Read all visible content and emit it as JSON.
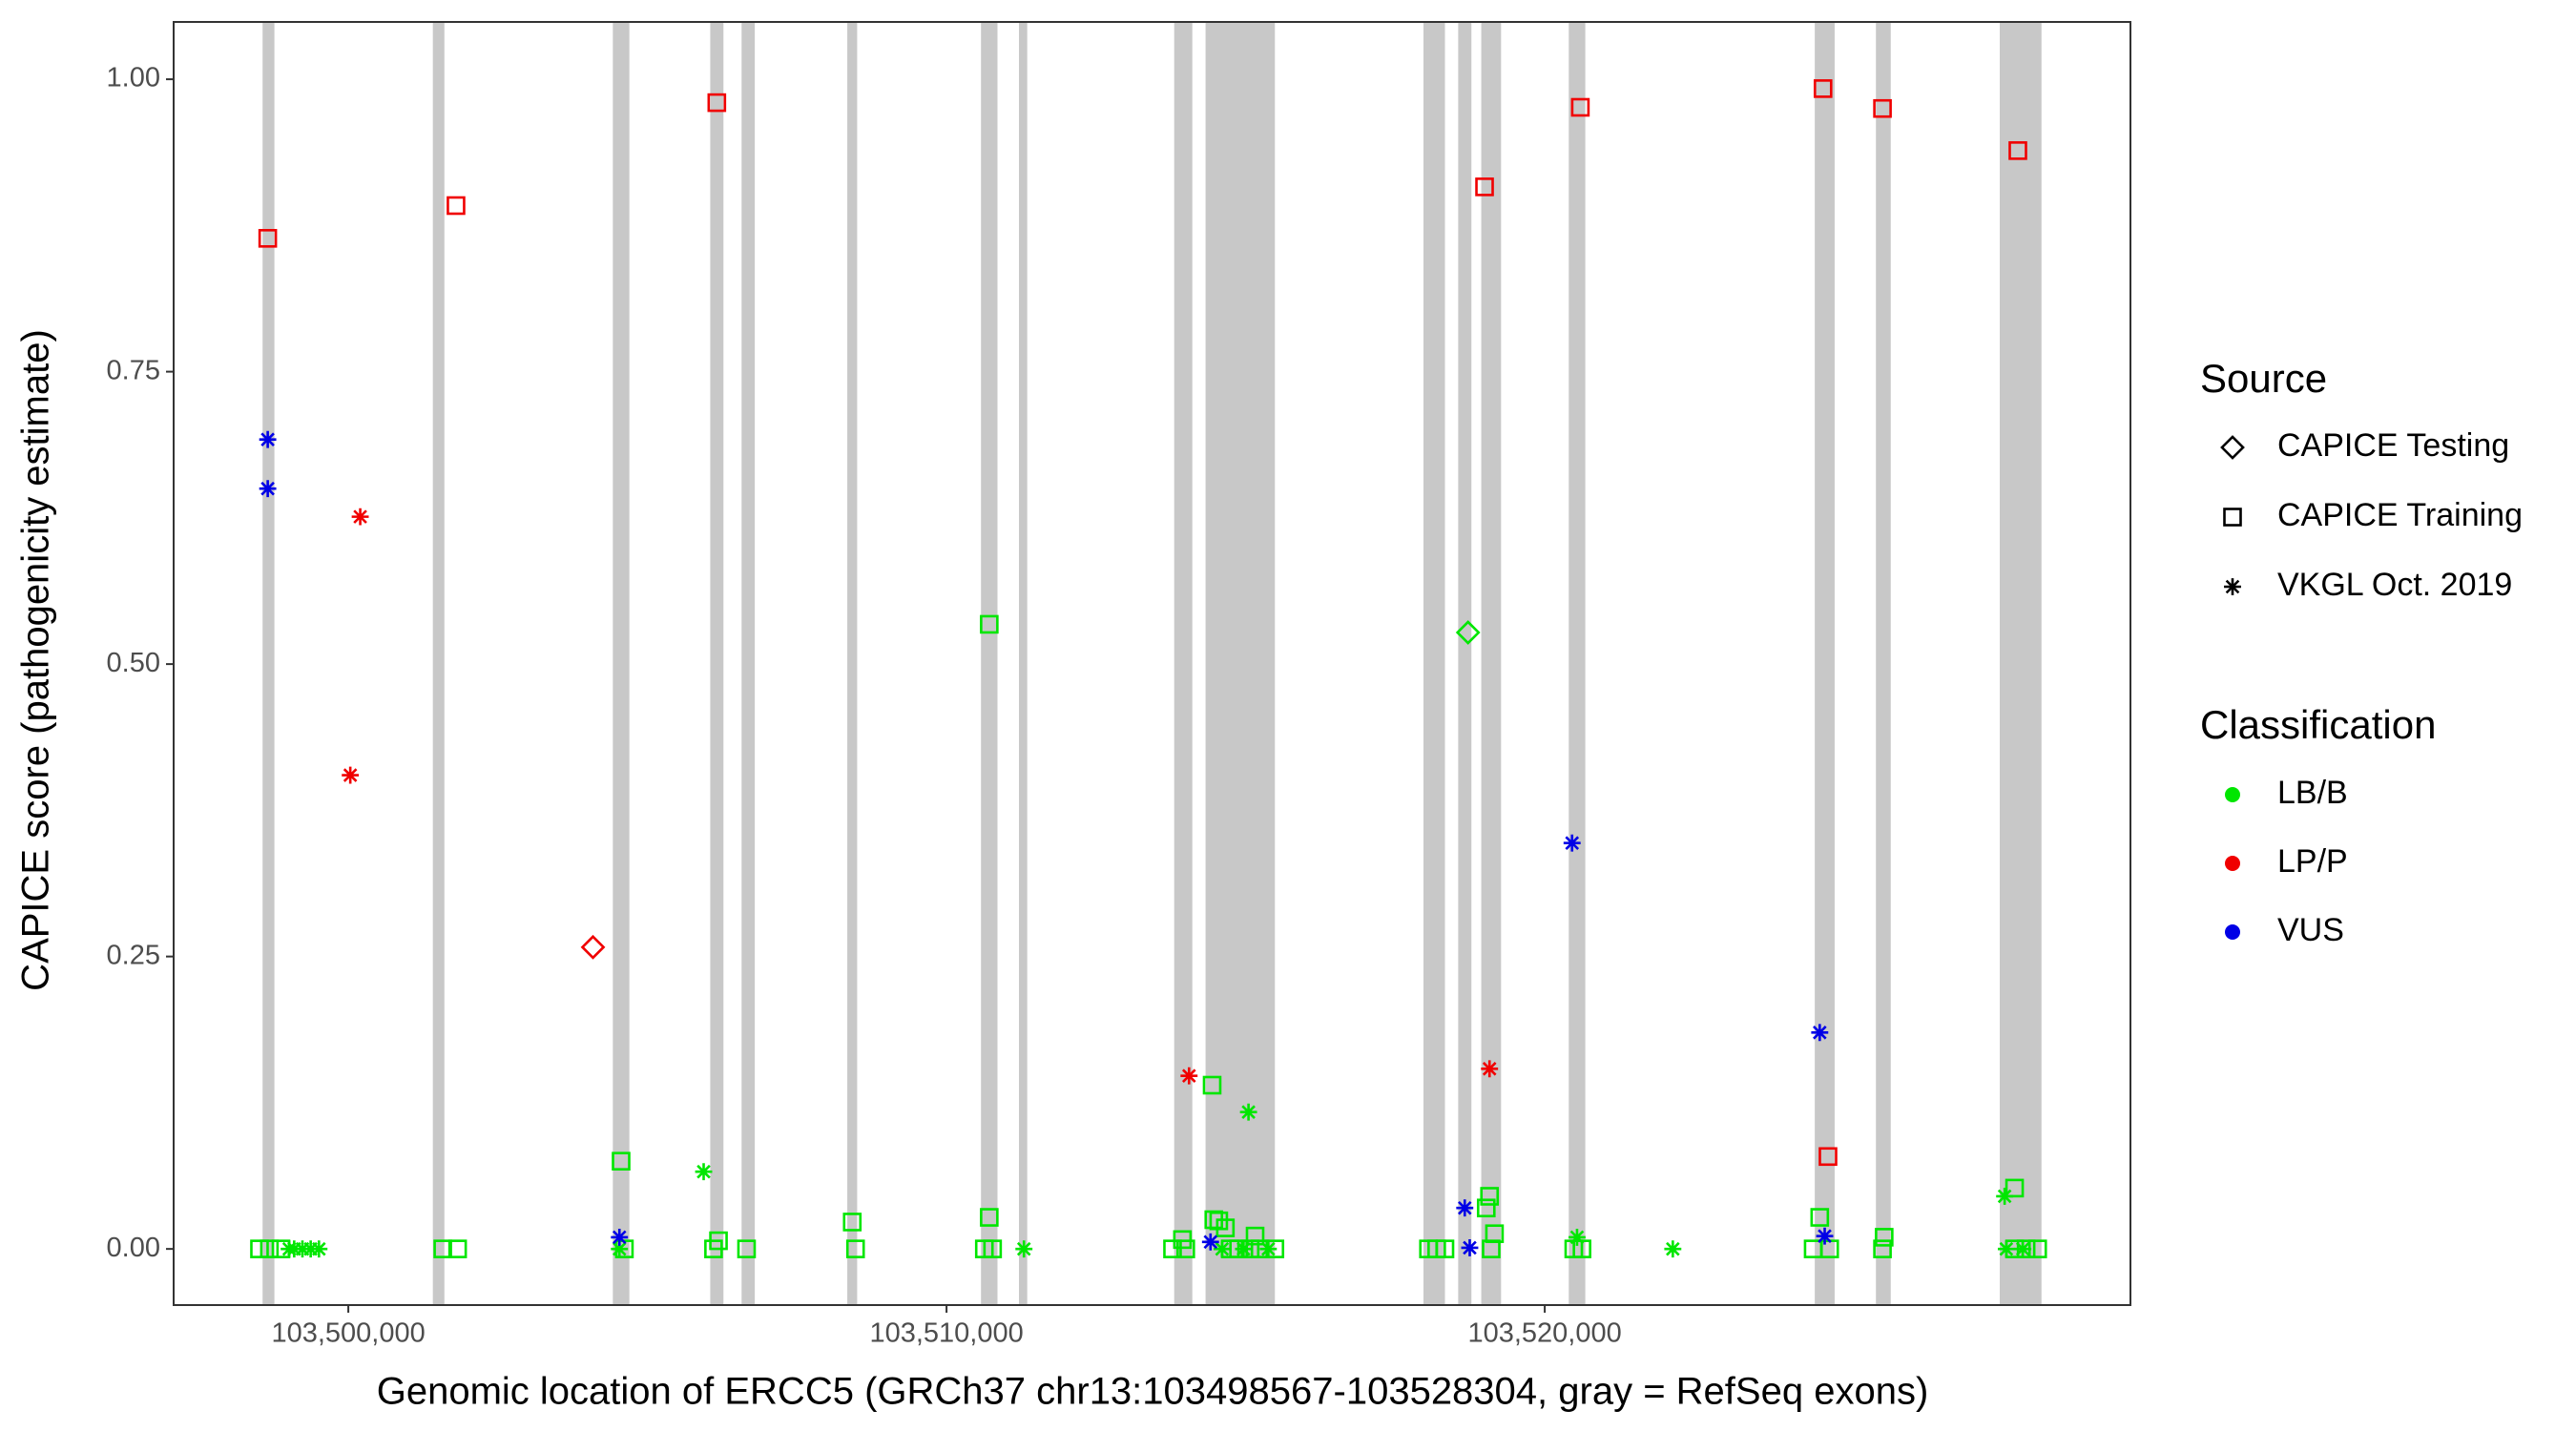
{
  "chart_data": {
    "type": "scatter",
    "x_label": "Genomic location of ERCC5 (GRCh37 chr13:103498567-103528304, gray = RefSeq exons)",
    "y_label": "CAPICE score (pathogenicity estimate)",
    "xlim": [
      103497080,
      103529791
    ],
    "ylim": [
      -0.048,
      1.049
    ],
    "xticks": [
      {
        "value": 103500000,
        "label": "103,500,000"
      },
      {
        "value": 103510000,
        "label": "103,510,000"
      },
      {
        "value": 103520000,
        "label": "103,520,000"
      }
    ],
    "yticks": [
      {
        "value": 0,
        "label": "0.00"
      },
      {
        "value": 0.25,
        "label": "0.25"
      },
      {
        "value": 0.5,
        "label": "0.50"
      },
      {
        "value": 0.75,
        "label": "0.75"
      },
      {
        "value": 1,
        "label": "1.00"
      }
    ],
    "exon_color": "#c8c8c8",
    "exons": [
      {
        "start": 103498567,
        "end": 103498764
      },
      {
        "start": 103501413,
        "end": 103501606
      },
      {
        "start": 103504422,
        "end": 103504698
      },
      {
        "start": 103506050,
        "end": 103506271
      },
      {
        "start": 103506574,
        "end": 103506795
      },
      {
        "start": 103508341,
        "end": 103508506
      },
      {
        "start": 103510576,
        "end": 103510852
      },
      {
        "start": 103511211,
        "end": 103511349
      },
      {
        "start": 103513806,
        "end": 103514109
      },
      {
        "start": 103514330,
        "end": 103515489
      },
      {
        "start": 103517973,
        "end": 103518332
      },
      {
        "start": 103518553,
        "end": 103518774
      },
      {
        "start": 103518939,
        "end": 103519270
      },
      {
        "start": 103520402,
        "end": 103520678
      },
      {
        "start": 103524514,
        "end": 103524846
      },
      {
        "start": 103525536,
        "end": 103525784
      },
      {
        "start": 103527606,
        "end": 103528304
      }
    ],
    "source_title": "Source",
    "sources": [
      {
        "name": "CAPICE Testing",
        "shape": "diamond"
      },
      {
        "name": "CAPICE Training",
        "shape": "square"
      },
      {
        "name": "VKGL Oct. 2019",
        "shape": "asterisk"
      }
    ],
    "classification_title": "Classification",
    "classifications": [
      {
        "name": "LB/B",
        "color": "#00e600"
      },
      {
        "name": "LP/P",
        "color": "#f00000"
      },
      {
        "name": "VUS",
        "color": "#0000e6"
      }
    ],
    "x": [
      103504560,
      103510714,
      103510714,
      103508424,
      103514440,
      103514468,
      103514551,
      103514661,
      103515158,
      103519077,
      103519022,
      103519160,
      103524597,
      103527854,
      103525674,
      103506188,
      103513944,
      103498515,
      103498681,
      103498874,
      103501579,
      103501827,
      103504615,
      103506105,
      103506657,
      103508479,
      103510632,
      103510770,
      103513778,
      103513999,
      103514744,
      103514882,
      103515075,
      103515241,
      103515489,
      103518056,
      103518194,
      103518332,
      103519105,
      103520485,
      103520623,
      103524487,
      103524763,
      103525646,
      103527854,
      103528047,
      103528240,
      103505940,
      103515048,
      103527688,
      103520540,
      103522141,
      103511294,
      103499012,
      103499095,
      103499233,
      103499371,
      103499509,
      103504532,
      103514606,
      103514965,
      103515379,
      103527716,
      103527992,
      103518718,
      103498653,
      103501800,
      103506160,
      103518994,
      103520595,
      103524652,
      103525646,
      103527909,
      103524735,
      103504090,
      103500199,
      103500033,
      103514054,
      103519077,
      103498653,
      103498653,
      103504532,
      103514413,
      103518663,
      103518746,
      103520457,
      103524597,
      103524680
    ],
    "y": [
      0.075,
      0.534,
      0.027,
      0.023,
      0.14,
      0.025,
      0.024,
      0.018,
      0.011,
      0.045,
      0.035,
      0.013,
      0.027,
      0.052,
      0.01,
      0.007,
      0.008,
      0,
      0,
      0,
      0,
      0,
      0,
      0,
      0,
      0,
      0,
      0,
      0,
      0,
      0,
      0,
      0,
      0,
      0,
      0,
      0,
      0,
      0,
      0,
      0,
      0,
      0,
      0,
      0,
      0,
      0,
      0.066,
      0.117,
      0.045,
      0.01,
      0,
      0,
      0,
      0,
      0,
      0,
      0,
      0,
      0,
      0,
      0,
      0,
      0,
      0.527,
      0.864,
      0.892,
      0.98,
      0.908,
      0.976,
      0.992,
      0.975,
      0.939,
      0.079,
      0.258,
      0.626,
      0.405,
      0.148,
      0.154,
      0.692,
      0.65,
      0.01,
      0.006,
      0.035,
      0.001,
      0.347,
      0.185,
      0.011
    ],
    "source": [
      "CAPICE Training",
      "CAPICE Training",
      "CAPICE Training",
      "CAPICE Training",
      "CAPICE Training",
      "CAPICE Training",
      "CAPICE Training",
      "CAPICE Training",
      "CAPICE Training",
      "CAPICE Training",
      "CAPICE Training",
      "CAPICE Training",
      "CAPICE Training",
      "CAPICE Training",
      "CAPICE Training",
      "CAPICE Training",
      "CAPICE Training",
      "CAPICE Training",
      "CAPICE Training",
      "CAPICE Training",
      "CAPICE Training",
      "CAPICE Training",
      "CAPICE Training",
      "CAPICE Training",
      "CAPICE Training",
      "CAPICE Training",
      "CAPICE Training",
      "CAPICE Training",
      "CAPICE Training",
      "CAPICE Training",
      "CAPICE Training",
      "CAPICE Training",
      "CAPICE Training",
      "CAPICE Training",
      "CAPICE Training",
      "CAPICE Training",
      "CAPICE Training",
      "CAPICE Training",
      "CAPICE Training",
      "CAPICE Training",
      "CAPICE Training",
      "CAPICE Training",
      "CAPICE Training",
      "CAPICE Training",
      "CAPICE Training",
      "CAPICE Training",
      "CAPICE Training",
      "VKGL Oct. 2019",
      "VKGL Oct. 2019",
      "VKGL Oct. 2019",
      "VKGL Oct. 2019",
      "VKGL Oct. 2019",
      "VKGL Oct. 2019",
      "VKGL Oct. 2019",
      "VKGL Oct. 2019",
      "VKGL Oct. 2019",
      "VKGL Oct. 2019",
      "VKGL Oct. 2019",
      "VKGL Oct. 2019",
      "VKGL Oct. 2019",
      "VKGL Oct. 2019",
      "VKGL Oct. 2019",
      "VKGL Oct. 2019",
      "VKGL Oct. 2019",
      "CAPICE Testing",
      "CAPICE Training",
      "CAPICE Training",
      "CAPICE Training",
      "CAPICE Training",
      "CAPICE Training",
      "CAPICE Training",
      "CAPICE Training",
      "CAPICE Training",
      "CAPICE Training",
      "CAPICE Testing",
      "VKGL Oct. 2019",
      "VKGL Oct. 2019",
      "VKGL Oct. 2019",
      "VKGL Oct. 2019",
      "VKGL Oct. 2019",
      "VKGL Oct. 2019",
      "VKGL Oct. 2019",
      "VKGL Oct. 2019",
      "VKGL Oct. 2019",
      "VKGL Oct. 2019",
      "VKGL Oct. 2019",
      "VKGL Oct. 2019",
      "VKGL Oct. 2019"
    ],
    "classification": [
      "LB/B",
      "LB/B",
      "LB/B",
      "LB/B",
      "LB/B",
      "LB/B",
      "LB/B",
      "LB/B",
      "LB/B",
      "LB/B",
      "LB/B",
      "LB/B",
      "LB/B",
      "LB/B",
      "LB/B",
      "LB/B",
      "LB/B",
      "LB/B",
      "LB/B",
      "LB/B",
      "LB/B",
      "LB/B",
      "LB/B",
      "LB/B",
      "LB/B",
      "LB/B",
      "LB/B",
      "LB/B",
      "LB/B",
      "LB/B",
      "LB/B",
      "LB/B",
      "LB/B",
      "LB/B",
      "LB/B",
      "LB/B",
      "LB/B",
      "LB/B",
      "LB/B",
      "LB/B",
      "LB/B",
      "LB/B",
      "LB/B",
      "LB/B",
      "LB/B",
      "LB/B",
      "LB/B",
      "LB/B",
      "LB/B",
      "LB/B",
      "LB/B",
      "LB/B",
      "LB/B",
      "LB/B",
      "LB/B",
      "LB/B",
      "LB/B",
      "LB/B",
      "LB/B",
      "LB/B",
      "LB/B",
      "LB/B",
      "LB/B",
      "LB/B",
      "LB/B",
      "LP/P",
      "LP/P",
      "LP/P",
      "LP/P",
      "LP/P",
      "LP/P",
      "LP/P",
      "LP/P",
      "LP/P",
      "LP/P",
      "LP/P",
      "LP/P",
      "LP/P",
      "LP/P",
      "VUS",
      "VUS",
      "VUS",
      "VUS",
      "VUS",
      "VUS",
      "VUS",
      "VUS",
      "VUS"
    ]
  }
}
